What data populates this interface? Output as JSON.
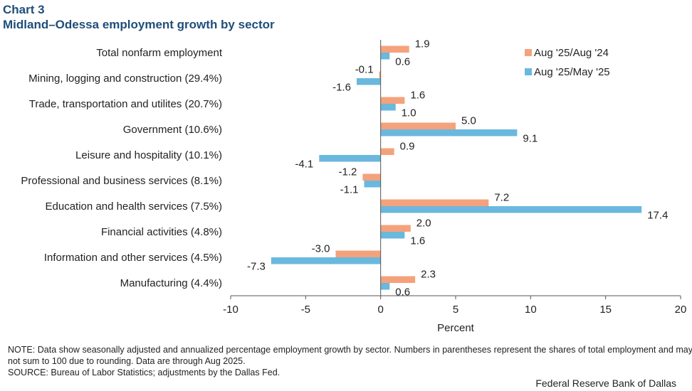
{
  "header": {
    "chart_number": "Chart 3",
    "title": "Midland–Odessa employment growth by sector"
  },
  "chart_data": {
    "type": "bar",
    "orientation": "horizontal",
    "title": "Midland–Odessa employment growth by sector",
    "xlabel": "Percent",
    "ylabel": "",
    "xlim": [
      -10,
      20
    ],
    "xticks": [
      -10,
      -5,
      0,
      5,
      10,
      15,
      20
    ],
    "xtick_labels": [
      "-10",
      "-5",
      "0",
      "5",
      "10",
      "15",
      "20"
    ],
    "grid": false,
    "legend_position": "top-right",
    "categories": [
      "Total nonfarm employment",
      "Mining, logging and construction (29.4%)",
      "Trade, transportation and utilites (20.7%)",
      "Government (10.6%)",
      "Leisure and hospitality (10.1%)",
      "Professional and business services (8.1%)",
      "Education and health services (7.5%)",
      "Financial activities (4.8%)",
      "Information and other services (4.5%)",
      "Manufacturing (4.4%)"
    ],
    "series": [
      {
        "name": "Aug '25/Aug '24",
        "color": "#f4a27c",
        "values": [
          1.9,
          -0.1,
          1.6,
          5.0,
          0.9,
          -1.2,
          7.2,
          2.0,
          -3.0,
          2.3
        ],
        "labels": [
          "1.9",
          "-0.1",
          "1.6",
          "5.0",
          "0.9",
          "-1.2",
          "7.2",
          "2.0",
          "-3.0",
          "2.3"
        ]
      },
      {
        "name": "Aug '25/May '25",
        "color": "#6ab8dd",
        "values": [
          0.6,
          -1.6,
          1.0,
          9.1,
          -4.1,
          -1.1,
          17.4,
          1.6,
          -7.3,
          0.6
        ],
        "labels": [
          "0.6",
          "-1.6",
          "1.0",
          "9.1",
          "-4.1",
          "-1.1",
          "17.4",
          "1.6",
          "-7.3",
          "0.6"
        ]
      }
    ]
  },
  "notes": {
    "note": "NOTE: Data show seasonally adjusted and annualized percentage employment growth by sector. Numbers in parentheses represent the shares of total employment and may not sum to 100 due to rounding. Data are through Aug 2025.",
    "source": "SOURCE: Bureau of Labor Statistics; adjustments by the Dallas Fed."
  },
  "credit": "Federal Reserve Bank of Dallas"
}
